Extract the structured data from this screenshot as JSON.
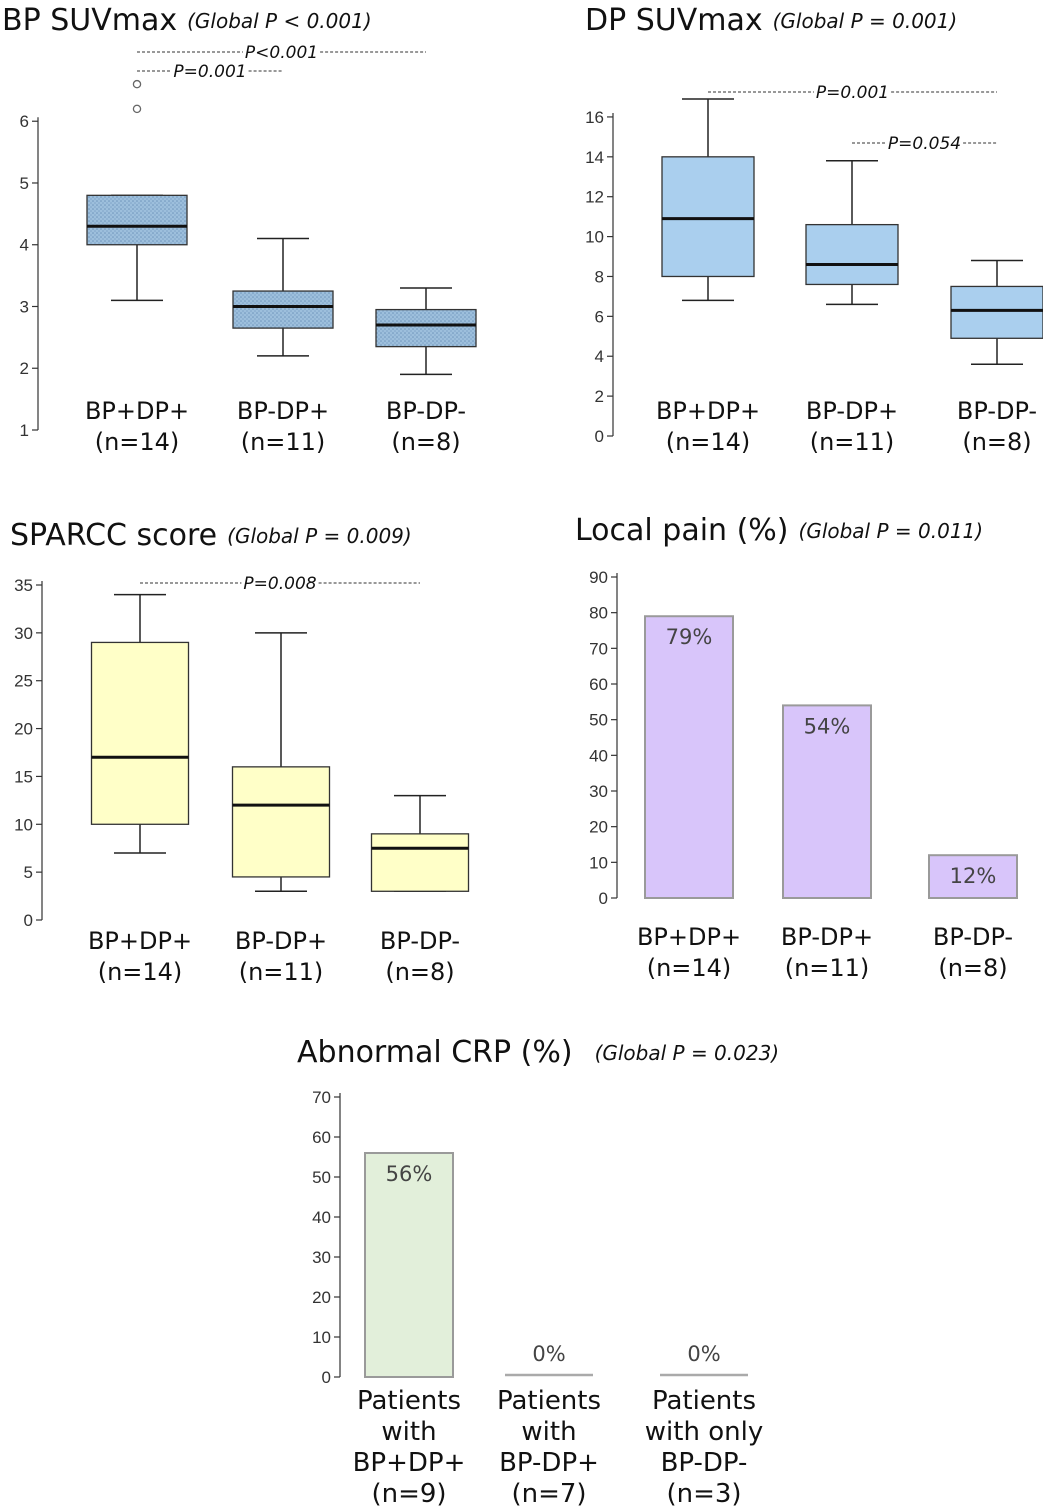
{
  "chart_data": [
    {
      "id": "bp",
      "type": "box",
      "title": "BP SUVmax",
      "global_p": "(Global P < 0.001)",
      "ylim": [
        1,
        6.7
      ],
      "yticks": [
        1,
        2,
        3,
        4,
        5,
        6
      ],
      "color": "#9dbfdc",
      "hatched": true,
      "categories": [
        {
          "label": "BP+DP+",
          "n": "(n=14)"
        },
        {
          "label": "BP-DP+",
          "n": "(n=11)"
        },
        {
          "label": "BP-DP-",
          "n": "(n=8)"
        }
      ],
      "boxes": [
        {
          "min": 3.1,
          "q1": 4.0,
          "median": 4.3,
          "q3": 4.8,
          "max": 4.8,
          "outliers": [
            6.2,
            6.6
          ]
        },
        {
          "min": 2.2,
          "q1": 2.65,
          "median": 3.0,
          "q3": 3.25,
          "max": 4.1,
          "outliers": []
        },
        {
          "min": 1.9,
          "q1": 2.35,
          "median": 2.7,
          "q3": 2.95,
          "max": 3.3,
          "outliers": []
        }
      ],
      "annotations": [
        {
          "text": "P<0.001",
          "from": 0,
          "to": 2,
          "level": 0
        },
        {
          "text": "P=0.001",
          "from": 0,
          "to": 1,
          "level": 1
        }
      ]
    },
    {
      "id": "dp",
      "type": "box",
      "title": "DP SUVmax",
      "global_p": "(Global P = 0.001)",
      "ylim": [
        0,
        17
      ],
      "yticks": [
        0,
        2,
        4,
        6,
        8,
        10,
        12,
        14,
        16
      ],
      "color": "#aacfee",
      "hatched": false,
      "categories": [
        {
          "label": "BP+DP+",
          "n": "(n=14)"
        },
        {
          "label": "BP-DP+",
          "n": "(n=11)"
        },
        {
          "label": "BP-DP-",
          "n": "(n=8)"
        }
      ],
      "boxes": [
        {
          "min": 6.8,
          "q1": 8.0,
          "median": 10.9,
          "q3": 14.0,
          "max": 16.9,
          "outliers": []
        },
        {
          "min": 6.6,
          "q1": 7.6,
          "median": 8.6,
          "q3": 10.6,
          "max": 13.8,
          "outliers": []
        },
        {
          "min": 3.6,
          "q1": 4.9,
          "median": 6.3,
          "q3": 7.5,
          "max": 8.8,
          "outliers": []
        }
      ],
      "annotations": [
        {
          "text": "P=0.001",
          "from": 0,
          "to": 2,
          "level": 0
        },
        {
          "text": "P=0.054",
          "from": 1,
          "to": 2,
          "level": 1
        }
      ]
    },
    {
      "id": "sparcc",
      "type": "box",
      "title": "SPARCC score",
      "global_p": "(Global P = 0.009)",
      "ylim": [
        0,
        35
      ],
      "yticks": [
        0,
        5,
        10,
        15,
        20,
        25,
        30,
        35
      ],
      "color": "#ffffc8",
      "hatched": false,
      "categories": [
        {
          "label": "BP+DP+",
          "n": "(n=14)"
        },
        {
          "label": "BP-DP+",
          "n": "(n=11)"
        },
        {
          "label": "BP-DP-",
          "n": "(n=8)"
        }
      ],
      "boxes": [
        {
          "min": 7,
          "q1": 10,
          "median": 17,
          "q3": 29,
          "max": 34,
          "outliers": []
        },
        {
          "min": 3,
          "q1": 4.5,
          "median": 12,
          "q3": 16,
          "max": 30,
          "outliers": []
        },
        {
          "min": 3,
          "q1": 3,
          "median": 7.5,
          "q3": 9,
          "max": 13,
          "outliers": []
        }
      ],
      "annotations": [
        {
          "text": "P=0.008",
          "from": 0,
          "to": 2,
          "level": 0
        }
      ]
    },
    {
      "id": "pain",
      "type": "bar",
      "title": "Local pain (%)",
      "global_p": "(Global P = 0.011)",
      "ylim": [
        0,
        90
      ],
      "yticks": [
        0,
        10,
        20,
        30,
        40,
        50,
        60,
        70,
        80,
        90
      ],
      "color": "#d8c5fa",
      "categories": [
        {
          "label": "BP+DP+",
          "n": "(n=14)"
        },
        {
          "label": "BP-DP+",
          "n": "(n=11)"
        },
        {
          "label": "BP-DP-",
          "n": "(n=8)"
        }
      ],
      "values": [
        79,
        54,
        12
      ],
      "value_labels": [
        "79%",
        "54%",
        "12%"
      ]
    },
    {
      "id": "crp",
      "type": "bar",
      "title": "Abnormal CRP (%)",
      "global_p": "(Global P = 0.023)",
      "ylim": [
        0,
        70
      ],
      "yticks": [
        0,
        10,
        20,
        30,
        40,
        50,
        60,
        70
      ],
      "color": "#e2efda",
      "categories": [
        {
          "lines": [
            "Patients",
            "with",
            "BP+DP+",
            "(n=9)"
          ]
        },
        {
          "lines": [
            "Patients",
            "with",
            "BP-DP+",
            "(n=7)"
          ]
        },
        {
          "lines": [
            "Patients",
            "with only",
            "BP-DP-",
            "(n=3)"
          ]
        }
      ],
      "values": [
        56,
        0,
        0
      ],
      "value_labels": [
        "56%",
        "0%",
        "0%"
      ]
    }
  ]
}
